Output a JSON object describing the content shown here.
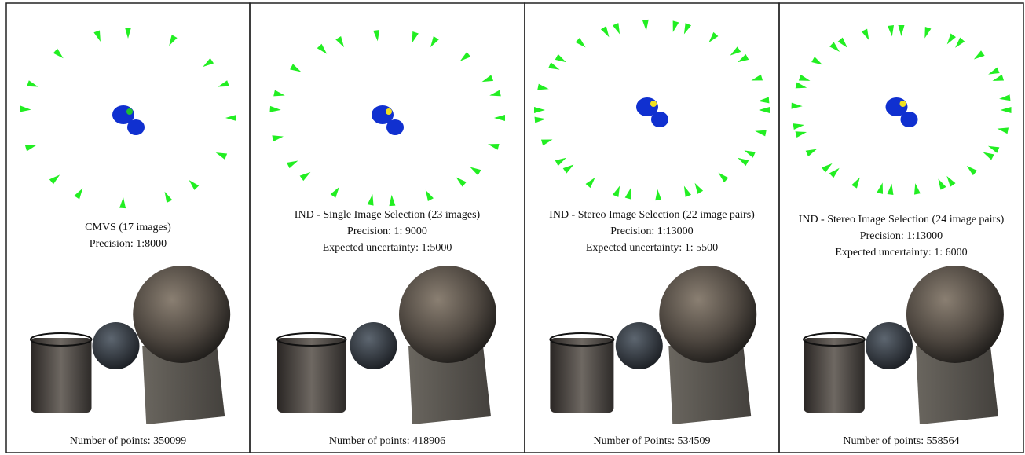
{
  "panels": [
    {
      "title": "CMVS (17 images)",
      "precision": "Precision: 1:8000",
      "points": "Number of points: 350099"
    },
    {
      "title": "IND - Single Image Selection (23 images)",
      "precision": "Precision: 1: 9000",
      "uncertainty": "Expected uncertainty: 1:5000",
      "points": "Number of points: 418906"
    },
    {
      "title": "IND - Stereo Image Selection (22 image pairs)",
      "precision": "Precision: 1:13000",
      "uncertainty": "Expected uncertainty: 1: 5500",
      "points": "Number of Points: 534509"
    },
    {
      "title": "IND - Stereo Image Selection (24 image pairs)",
      "precision": "Precision: 1:13000",
      "uncertainty": "Expected uncertainty: 1: 6000",
      "points": "Number of points: 558564"
    }
  ]
}
